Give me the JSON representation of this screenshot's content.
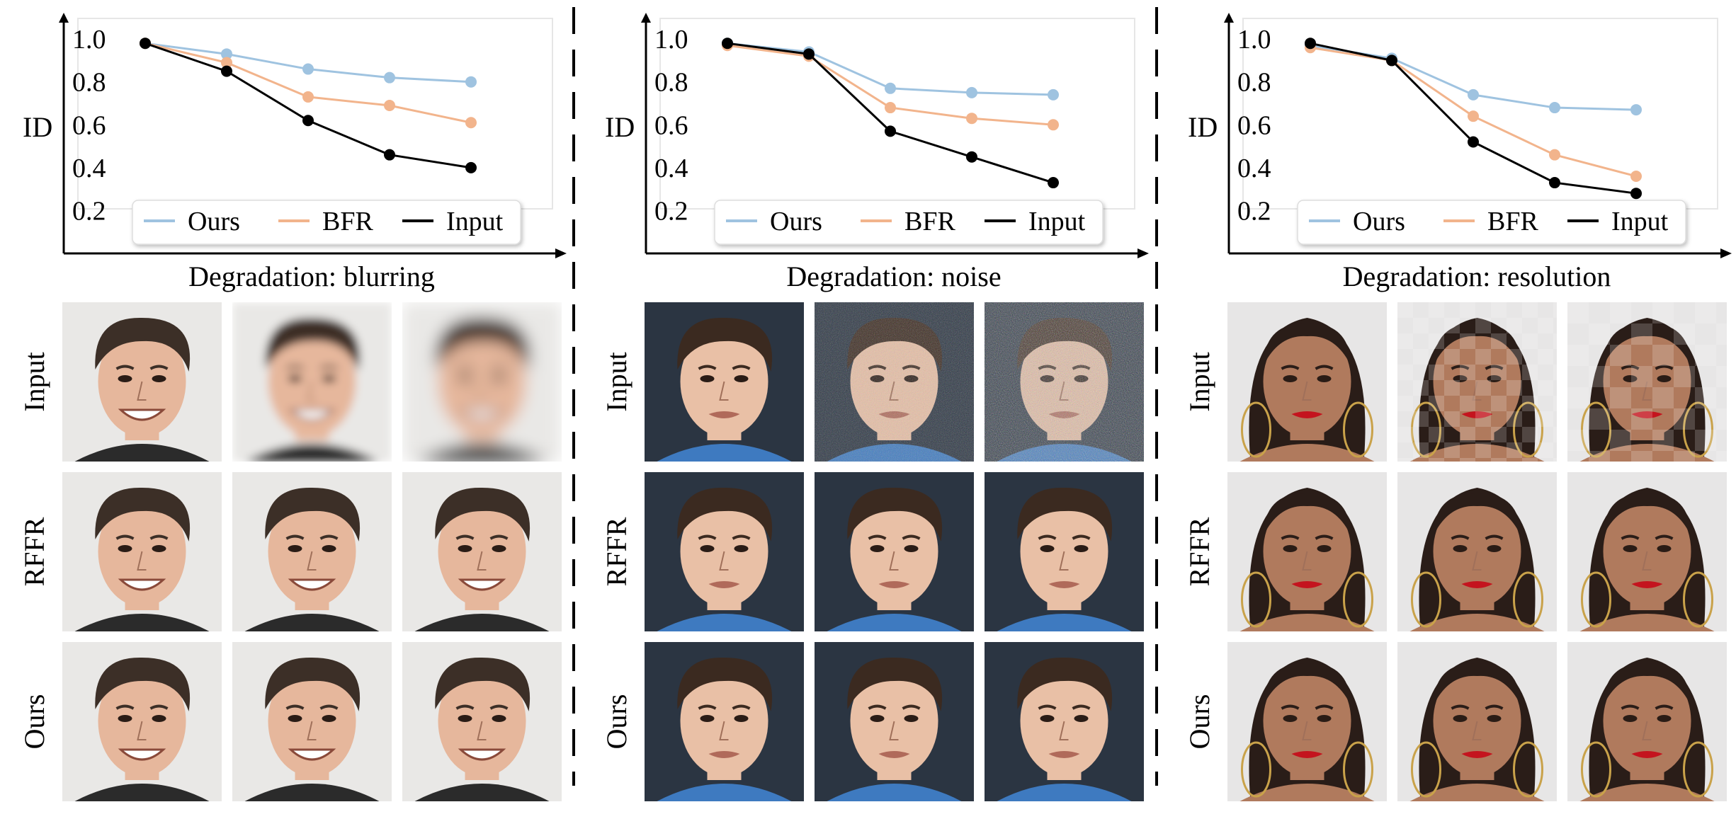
{
  "colors": {
    "ours": "#9fc3e0",
    "bfr": "#f2b48c",
    "input": "#000000",
    "axis": "#000000",
    "frame": "#e6e6e6",
    "divider": "#000000"
  },
  "row_labels": [
    "Input",
    "RFFR",
    "Ours"
  ],
  "chart_data": [
    {
      "type": "line",
      "title": "",
      "xlabel": "Degradation: blurring",
      "ylabel": "ID",
      "ylim": [
        0.0,
        1.05
      ],
      "yticks": [
        "0.2",
        "0.4",
        "0.6",
        "0.8",
        "1.0"
      ],
      "x": [
        1,
        2,
        3,
        4,
        5
      ],
      "legend": "bottom",
      "series": [
        {
          "name": "Ours",
          "color": "#9fc3e0",
          "values": [
            0.98,
            0.93,
            0.86,
            0.82,
            0.8
          ]
        },
        {
          "name": "BFR",
          "color": "#f2b48c",
          "values": [
            0.98,
            0.89,
            0.73,
            0.69,
            0.61
          ]
        },
        {
          "name": "Input",
          "color": "#000000",
          "values": [
            0.98,
            0.85,
            0.62,
            0.46,
            0.4
          ]
        }
      ],
      "face": "man-grey-background"
    },
    {
      "type": "line",
      "title": "",
      "xlabel": "Degradation: noise",
      "ylabel": "ID",
      "ylim": [
        0.0,
        1.05
      ],
      "yticks": [
        "0.2",
        "0.4",
        "0.6",
        "0.8",
        "1.0"
      ],
      "x": [
        1,
        2,
        3,
        4,
        5
      ],
      "legend": "bottom",
      "series": [
        {
          "name": "Ours",
          "color": "#9fc3e0",
          "values": [
            0.98,
            0.94,
            0.77,
            0.75,
            0.74
          ]
        },
        {
          "name": "BFR",
          "color": "#f2b48c",
          "values": [
            0.97,
            0.92,
            0.68,
            0.63,
            0.6
          ]
        },
        {
          "name": "Input",
          "color": "#000000",
          "values": [
            0.98,
            0.93,
            0.57,
            0.45,
            0.33
          ]
        }
      ],
      "face": "young-man-dark-background"
    },
    {
      "type": "line",
      "title": "",
      "xlabel": "Degradation: resolution",
      "ylabel": "ID",
      "ylim": [
        0.0,
        1.05
      ],
      "yticks": [
        "0.2",
        "0.4",
        "0.6",
        "0.8",
        "1.0"
      ],
      "x": [
        1,
        2,
        3,
        4,
        5
      ],
      "legend": "bottom",
      "series": [
        {
          "name": "Ours",
          "color": "#9fc3e0",
          "values": [
            0.97,
            0.91,
            0.74,
            0.68,
            0.67
          ]
        },
        {
          "name": "BFR",
          "color": "#f2b48c",
          "values": [
            0.96,
            0.9,
            0.64,
            0.46,
            0.36
          ]
        },
        {
          "name": "Input",
          "color": "#000000",
          "values": [
            0.98,
            0.9,
            0.52,
            0.33,
            0.28
          ]
        }
      ],
      "face": "woman-light-background"
    }
  ]
}
